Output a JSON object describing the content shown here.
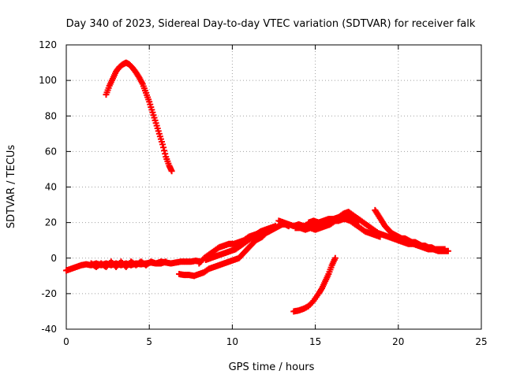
{
  "chart_data": {
    "type": "scatter",
    "title": "Day 340 of 2023, Sidereal Day-to-day VTEC variation (SDTVAR) for receiver falk",
    "xlabel": "GPS time / hours",
    "ylabel": "SDTVAR / TECUs",
    "xlim": [
      0,
      25
    ],
    "ylim": [
      -40,
      120
    ],
    "xticks": [
      0,
      5,
      10,
      15,
      20,
      25
    ],
    "yticks": [
      -40,
      -20,
      0,
      20,
      40,
      60,
      80,
      100,
      120
    ],
    "grid": true,
    "marker": "+",
    "color": "#ff0000",
    "series": [
      {
        "name": "arc-high",
        "points": [
          [
            2.4,
            92
          ],
          [
            2.6,
            97
          ],
          [
            2.8,
            101
          ],
          [
            3.0,
            105
          ],
          [
            3.2,
            107.5
          ],
          [
            3.4,
            109
          ],
          [
            3.6,
            110
          ],
          [
            3.8,
            109
          ],
          [
            4.0,
            107
          ],
          [
            4.2,
            104.5
          ],
          [
            4.4,
            101.5
          ],
          [
            4.6,
            98
          ],
          [
            4.8,
            93
          ],
          [
            5.0,
            88
          ],
          [
            5.2,
            82
          ],
          [
            5.4,
            76
          ],
          [
            5.6,
            70
          ],
          [
            5.8,
            64
          ],
          [
            6.0,
            57
          ],
          [
            6.2,
            52
          ],
          [
            6.35,
            49
          ]
        ]
      },
      {
        "name": "arc-low-early",
        "points": [
          [
            0,
            -7
          ],
          [
            0.3,
            -6
          ],
          [
            0.6,
            -5
          ],
          [
            0.9,
            -4
          ],
          [
            1.2,
            -3.5
          ],
          [
            1.5,
            -4
          ],
          [
            1.8,
            -3
          ],
          [
            2.1,
            -4
          ],
          [
            2.4,
            -3
          ],
          [
            2.7,
            -4
          ],
          [
            3.0,
            -3
          ],
          [
            3.3,
            -4
          ],
          [
            3.6,
            -3
          ],
          [
            3.9,
            -4
          ],
          [
            4.2,
            -3
          ],
          [
            4.5,
            -3.5
          ],
          [
            4.8,
            -3
          ],
          [
            5.1,
            -2.5
          ],
          [
            5.4,
            -3
          ],
          [
            5.7,
            -2
          ],
          [
            6.0,
            -2.5
          ],
          [
            6.3,
            -3
          ],
          [
            6.6,
            -2.5
          ],
          [
            6.9,
            -2
          ],
          [
            7.2,
            -2
          ],
          [
            7.5,
            -2
          ],
          [
            7.8,
            -1.5
          ],
          [
            8.1,
            -2
          ]
        ]
      },
      {
        "name": "arc-low-secondary",
        "points": [
          [
            1.5,
            -3
          ],
          [
            1.8,
            -5
          ],
          [
            2.1,
            -3
          ],
          [
            2.4,
            -5
          ],
          [
            2.7,
            -2
          ],
          [
            3.0,
            -5
          ],
          [
            3.3,
            -2
          ],
          [
            3.6,
            -5
          ],
          [
            3.9,
            -2
          ],
          [
            4.2,
            -4
          ],
          [
            4.5,
            -2
          ],
          [
            4.8,
            -4
          ],
          [
            5.1,
            -2
          ],
          [
            5.4,
            -3
          ],
          [
            5.7,
            -3
          ],
          [
            6.0,
            -2
          ]
        ]
      },
      {
        "name": "arc-rise",
        "points": [
          [
            6.8,
            -9
          ],
          [
            7.1,
            -9.5
          ],
          [
            7.4,
            -9.5
          ],
          [
            7.7,
            -10
          ],
          [
            8.0,
            -9
          ],
          [
            8.3,
            -8
          ],
          [
            8.6,
            -6
          ],
          [
            8.9,
            -5
          ],
          [
            9.2,
            -4
          ],
          [
            9.5,
            -3
          ],
          [
            9.8,
            -2
          ],
          [
            10.1,
            -1
          ],
          [
            10.4,
            0
          ],
          [
            10.6,
            2
          ],
          [
            10.8,
            4
          ],
          [
            11.0,
            6
          ],
          [
            11.2,
            8
          ],
          [
            11.4,
            10
          ],
          [
            11.6,
            11
          ],
          [
            11.8,
            12
          ],
          [
            12.0,
            14
          ],
          [
            12.2,
            15
          ],
          [
            12.4,
            16
          ],
          [
            12.6,
            17
          ],
          [
            12.8,
            18
          ],
          [
            13.0,
            19
          ],
          [
            13.2,
            19
          ],
          [
            13.4,
            18
          ]
        ]
      },
      {
        "name": "arc-rise-2",
        "points": [
          [
            8.0,
            -3
          ],
          [
            8.3,
            0
          ],
          [
            8.6,
            2
          ],
          [
            8.9,
            4
          ],
          [
            9.2,
            6
          ],
          [
            9.5,
            7
          ],
          [
            9.8,
            8
          ],
          [
            10.1,
            8
          ],
          [
            10.4,
            9
          ],
          [
            10.7,
            10
          ],
          [
            11.0,
            12
          ],
          [
            11.3,
            13
          ],
          [
            11.6,
            14
          ],
          [
            11.9,
            15
          ],
          [
            12.2,
            15
          ]
        ]
      },
      {
        "name": "arc-rise-3",
        "points": [
          [
            8.4,
            -1
          ],
          [
            8.7,
            0
          ],
          [
            9.0,
            1
          ],
          [
            9.3,
            2
          ],
          [
            9.6,
            3
          ],
          [
            9.9,
            4
          ],
          [
            10.2,
            5
          ],
          [
            10.5,
            7
          ],
          [
            10.8,
            9
          ],
          [
            11.1,
            11
          ],
          [
            11.4,
            13
          ],
          [
            11.7,
            15
          ],
          [
            12.0,
            16
          ],
          [
            12.3,
            17
          ],
          [
            12.6,
            18
          ]
        ]
      },
      {
        "name": "arc-plateau",
        "points": [
          [
            12.8,
            21
          ],
          [
            13.1,
            20
          ],
          [
            13.4,
            19
          ],
          [
            13.7,
            18
          ],
          [
            14.0,
            19
          ],
          [
            14.3,
            18
          ],
          [
            14.6,
            19
          ],
          [
            14.9,
            18
          ],
          [
            15.2,
            20
          ],
          [
            15.5,
            21
          ],
          [
            15.8,
            22
          ],
          [
            16.1,
            22
          ],
          [
            16.4,
            23
          ],
          [
            16.7,
            25
          ],
          [
            17.0,
            26
          ],
          [
            17.3,
            24
          ],
          [
            17.6,
            22
          ],
          [
            17.9,
            20
          ],
          [
            18.2,
            18
          ],
          [
            18.5,
            16
          ],
          [
            18.8,
            14
          ],
          [
            19.1,
            13
          ],
          [
            19.4,
            12
          ],
          [
            19.7,
            11
          ],
          [
            20.0,
            10
          ],
          [
            20.3,
            9
          ],
          [
            20.6,
            8
          ],
          [
            20.9,
            8
          ],
          [
            21.2,
            7
          ],
          [
            21.5,
            6
          ],
          [
            21.8,
            5
          ],
          [
            22.1,
            5
          ],
          [
            22.4,
            4
          ],
          [
            22.7,
            4
          ],
          [
            23.0,
            4
          ]
        ]
      },
      {
        "name": "arc-plateau-low",
        "points": [
          [
            13.8,
            17
          ],
          [
            14.1,
            17
          ],
          [
            14.4,
            16
          ],
          [
            14.7,
            17
          ],
          [
            15.0,
            16
          ],
          [
            15.3,
            17
          ],
          [
            15.6,
            18
          ],
          [
            15.9,
            19
          ],
          [
            16.2,
            21
          ],
          [
            16.5,
            22
          ],
          [
            16.8,
            22
          ],
          [
            17.1,
            21
          ],
          [
            17.4,
            19
          ],
          [
            17.7,
            17
          ],
          [
            18.0,
            15
          ],
          [
            18.3,
            14
          ],
          [
            18.6,
            13
          ],
          [
            18.9,
            12
          ]
        ]
      },
      {
        "name": "arc-plateau-mid",
        "points": [
          [
            14.6,
            20
          ],
          [
            14.9,
            21
          ],
          [
            15.2,
            20
          ],
          [
            15.5,
            19
          ],
          [
            15.8,
            20
          ],
          [
            16.1,
            21
          ],
          [
            16.4,
            21
          ],
          [
            16.7,
            22
          ],
          [
            17.0,
            23
          ],
          [
            17.3,
            22
          ],
          [
            17.6,
            21
          ]
        ]
      },
      {
        "name": "arc-late",
        "points": [
          [
            18.6,
            27
          ],
          [
            18.8,
            24
          ],
          [
            19.0,
            21
          ],
          [
            19.2,
            18
          ],
          [
            19.4,
            16
          ],
          [
            19.6,
            14
          ],
          [
            19.8,
            13
          ],
          [
            20.0,
            12
          ],
          [
            20.2,
            11
          ],
          [
            20.4,
            11
          ],
          [
            20.6,
            10
          ],
          [
            20.8,
            9
          ],
          [
            21.0,
            9
          ],
          [
            21.2,
            8
          ],
          [
            21.4,
            7
          ],
          [
            21.6,
            7
          ],
          [
            21.8,
            6
          ],
          [
            22.0,
            6
          ],
          [
            22.2,
            5
          ],
          [
            22.4,
            5
          ],
          [
            22.6,
            5
          ],
          [
            22.8,
            5
          ]
        ]
      },
      {
        "name": "arc-dip",
        "points": [
          [
            13.7,
            -30
          ],
          [
            14.0,
            -29.5
          ],
          [
            14.3,
            -28.5
          ],
          [
            14.6,
            -27
          ],
          [
            14.9,
            -24
          ],
          [
            15.2,
            -20
          ],
          [
            15.4,
            -17
          ],
          [
            15.6,
            -13
          ],
          [
            15.8,
            -9
          ],
          [
            16.0,
            -4
          ],
          [
            16.2,
            0
          ]
        ]
      }
    ]
  }
}
